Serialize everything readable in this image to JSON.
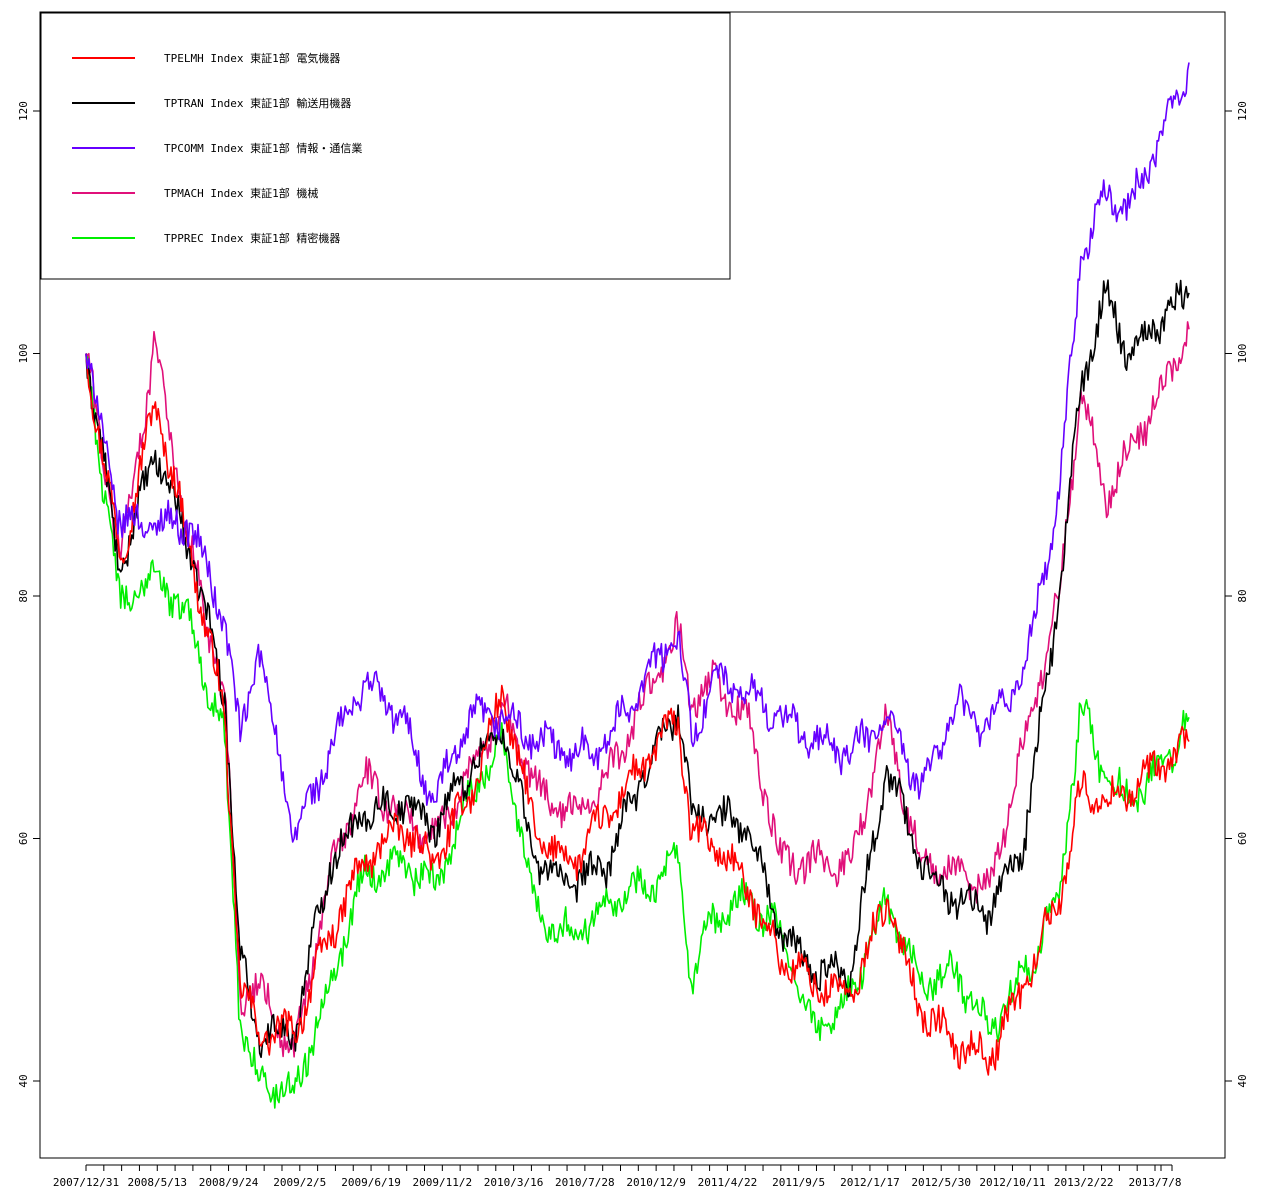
{
  "chart_data": {
    "type": "line",
    "title": "",
    "xlabel": "",
    "ylabel": "",
    "ylim": [
      34,
      127
    ],
    "y_ticks": [
      40,
      60,
      80,
      100,
      120
    ],
    "y_axes": [
      "left",
      "right"
    ],
    "grid": false,
    "legend_position": "top-left",
    "x_tick_labels": [
      "2007/12/31",
      "2008/5/13",
      "2008/9/24",
      "2009/2/5",
      "2009/6/19",
      "2009/11/2",
      "2010/3/16",
      "2010/7/28",
      "2010/12/9",
      "2011/4/22",
      "2011/9/5",
      "2012/1/17",
      "2012/5/30",
      "2012/10/11",
      "2013/2/22",
      "2013/7/8"
    ],
    "x": [
      "2007/12/31",
      "2008/3/7",
      "2008/5/13",
      "2008/7/18",
      "2008/9/24",
      "2008/10/24",
      "2008/11/28",
      "2009/2/5",
      "2009/4/15",
      "2009/6/19",
      "2009/9/1",
      "2009/11/2",
      "2010/1/15",
      "2010/3/16",
      "2010/5/20",
      "2010/7/28",
      "2010/10/4",
      "2010/12/9",
      "2011/2/17",
      "2011/3/15",
      "2011/4/22",
      "2011/7/1",
      "2011/9/5",
      "2011/11/10",
      "2012/1/17",
      "2012/3/26",
      "2012/5/30",
      "2012/8/6",
      "2012/10/11",
      "2012/12/17",
      "2013/2/22",
      "2013/4/5",
      "2013/5/22",
      "2013/7/8",
      "2013/9/10",
      "2013/10/31"
    ],
    "series": [
      {
        "name": "TPELMH Index 東証1部 電気機器",
        "color": "#ff0000",
        "values": [
          100,
          83,
          96,
          84,
          70,
          48,
          44,
          44,
          52,
          58,
          61,
          58,
          64,
          72,
          60,
          58,
          62,
          66,
          70,
          60,
          60,
          56,
          50,
          48,
          47,
          55,
          46,
          43,
          42,
          48,
          55,
          64,
          63,
          64,
          66,
          68
        ]
      },
      {
        "name": "TPTRAN Index 東証1部 輸送用機器",
        "color": "#000000",
        "values": [
          100,
          82,
          92,
          84,
          72,
          50,
          44,
          44,
          58,
          62,
          63,
          61,
          66,
          69,
          58,
          56,
          58,
          65,
          71,
          62,
          62,
          61,
          52,
          49,
          49,
          66,
          58,
          55,
          54,
          60,
          80,
          97,
          105,
          100,
          103,
          105
        ]
      },
      {
        "name": "TPCOMM Index 東証1部 情報・通信業",
        "color": "#6600ff",
        "values": [
          100,
          86,
          86,
          86,
          78,
          68,
          76,
          60,
          67,
          73,
          70,
          63,
          70,
          70,
          68,
          67,
          68,
          73,
          77,
          68,
          73,
          72,
          70,
          68,
          67,
          70,
          64,
          71,
          69,
          74,
          88,
          108,
          113,
          112,
          118,
          124
        ]
      },
      {
        "name": "TPMACH Index 東証1部 機械",
        "color": "#e0107a",
        "values": [
          100,
          83,
          101,
          84,
          72,
          47,
          48,
          42,
          57,
          65,
          62,
          60,
          66,
          71,
          64,
          62,
          65,
          71,
          77,
          71,
          73,
          70,
          58,
          58,
          58,
          70,
          58,
          57,
          56,
          68,
          80,
          97,
          88,
          92,
          97,
          102
        ]
      },
      {
        "name": "TPPREC Index 東証1部 精密機器",
        "color": "#00ee00",
        "values": [
          100,
          79,
          82,
          78,
          68,
          45,
          40,
          39,
          48,
          57,
          58,
          56,
          64,
          68,
          54,
          52,
          55,
          56,
          58,
          48,
          53,
          55,
          52,
          44,
          47,
          55,
          48,
          49,
          44,
          49,
          55,
          71,
          65,
          63,
          66,
          70
        ]
      }
    ]
  }
}
